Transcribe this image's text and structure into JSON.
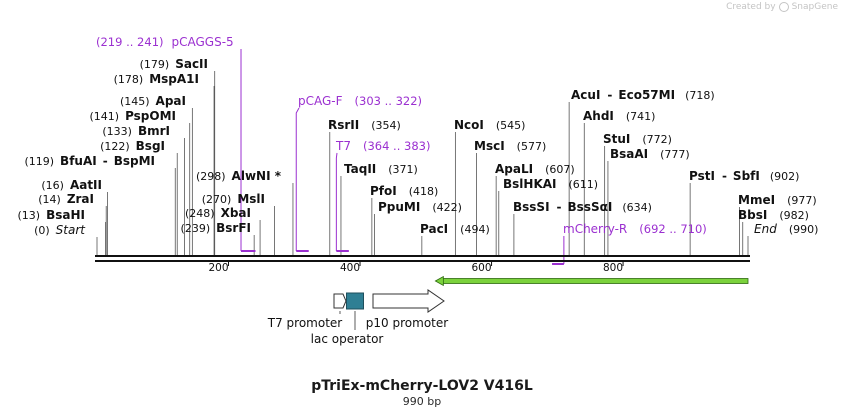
{
  "credit": {
    "text": "Created by",
    "brand": "SnapGene"
  },
  "plasmid": {
    "name": "pTriEx-mCherry-LOV2 V416L",
    "size_label": "990 bp"
  },
  "sequence": {
    "start": 0,
    "end": 990
  },
  "axis": {
    "ticks": [
      200,
      400,
      600,
      800
    ]
  },
  "colors": {
    "enzyme": "#111111",
    "primer": "#9b30d0",
    "arrow_fill": "#7bd23c",
    "arrow_stroke": "#222222",
    "lac": "#2f7f94"
  },
  "enzymes": [
    {
      "name": "Start",
      "pos": "(0)",
      "italic": true
    },
    {
      "name": "BsaHI",
      "pos": "(13)"
    },
    {
      "name": "ZraI",
      "pos": "(14)"
    },
    {
      "name": "AatII",
      "pos": "(16)"
    },
    {
      "name": "BfuAI",
      "name2": "BspMI",
      "pos": "(119)"
    },
    {
      "name": "BsgI",
      "pos": "(122)"
    },
    {
      "name": "BmrI",
      "pos": "(133)"
    },
    {
      "name": "PspOMI",
      "pos": "(141)"
    },
    {
      "name": "ApaI",
      "pos": "(145)"
    },
    {
      "name": "MspA1I",
      "pos": "(178)"
    },
    {
      "name": "SacII",
      "pos": "(179)"
    },
    {
      "name": "BsrFI",
      "pos": "(239)"
    },
    {
      "name": "XbaI",
      "pos": "(248)"
    },
    {
      "name": "MslI",
      "pos": "(270)"
    },
    {
      "name": "AlwNI *",
      "pos": "(298)"
    },
    {
      "name": "RsrII",
      "pos": "(354)"
    },
    {
      "name": "TaqII",
      "pos": "(371)"
    },
    {
      "name": "PfoI",
      "pos": "(418)"
    },
    {
      "name": "PpuMI",
      "pos": "(422)"
    },
    {
      "name": "PacI",
      "pos": "(494)"
    },
    {
      "name": "NcoI",
      "pos": "(545)"
    },
    {
      "name": "MscI",
      "pos": "(577)"
    },
    {
      "name": "ApaLI",
      "pos": "(607)"
    },
    {
      "name": "BslHKAI",
      "pos": "(611)"
    },
    {
      "name": "BssSI",
      "name2": "BssSαI",
      "pos": "(634)"
    },
    {
      "name": "AcuI",
      "name2": "Eco57MI",
      "pos": "(718)"
    },
    {
      "name": "AhdI",
      "pos": "(741)"
    },
    {
      "name": "StuI",
      "pos": "(772)"
    },
    {
      "name": "BsaAI",
      "pos": "(777)"
    },
    {
      "name": "PstI",
      "name2": "SbfI",
      "pos": "(902)"
    },
    {
      "name": "MmeI",
      "pos": "(977)"
    },
    {
      "name": "BbsI",
      "pos": "(982)"
    },
    {
      "name": "End",
      "pos": "(990)",
      "italic": true
    }
  ],
  "primers": [
    {
      "name": "pCAGGS-5",
      "range": "(219 .. 241)",
      "start": 219,
      "end": 241
    },
    {
      "name": "pCAG-F",
      "range": "(303 .. 322)",
      "start": 303,
      "end": 322
    },
    {
      "name": "T7",
      "range": "(364 .. 383)",
      "start": 364,
      "end": 383
    },
    {
      "name": "mCherry-R",
      "range": "(692 .. 710)",
      "start": 692,
      "end": 710
    }
  ],
  "features": {
    "green_arrow": {
      "start": 510,
      "end": 990,
      "direction": "reverse"
    },
    "t7_promoter": "T7 promoter",
    "lac_operator": "lac operator",
    "p10_promoter": "p10 promoter"
  }
}
